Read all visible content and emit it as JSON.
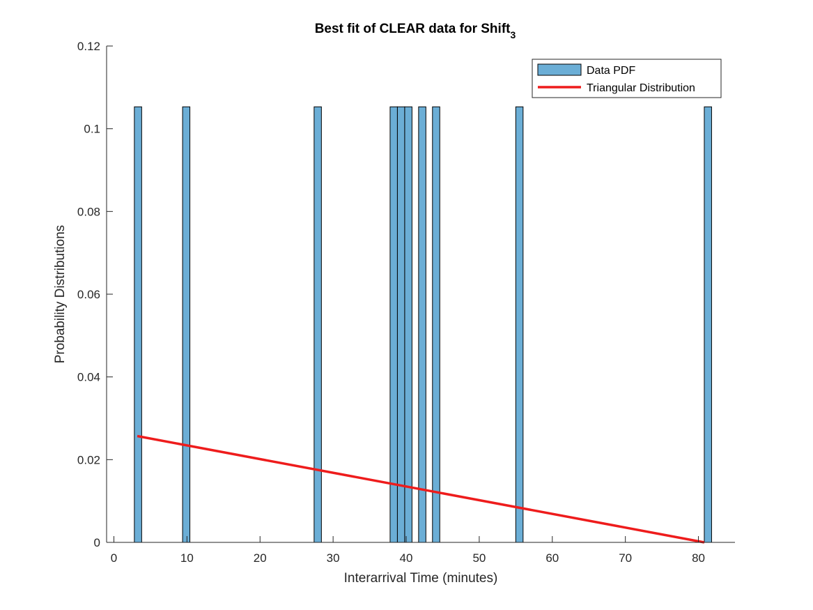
{
  "chart_data": {
    "type": "bar",
    "title": "Best fit of CLEAR data for Shift",
    "title_subscript": "3",
    "xlabel": "Interarrival Time (minutes)",
    "ylabel": "Probability Distributions",
    "xlim": [
      -1,
      85
    ],
    "ylim": [
      0,
      0.12
    ],
    "xticks": [
      0,
      10,
      20,
      30,
      40,
      50,
      60,
      70,
      80
    ],
    "xtick_labels": [
      "0",
      "10",
      "20",
      "30",
      "40",
      "50",
      "60",
      "70",
      "80"
    ],
    "yticks": [
      0,
      0.02,
      0.04,
      0.06,
      0.08,
      0.1,
      0.12
    ],
    "ytick_labels": [
      "0",
      "0.02",
      "0.04",
      "0.06",
      "0.08",
      "0.1",
      "0.12"
    ],
    "grid": false,
    "legend_position": "top-right",
    "bin_width": 1,
    "series": [
      {
        "name": "Data PDF",
        "kind": "bar",
        "color": "#6baed6",
        "edge_color": "#000000",
        "x": [
          3.3,
          9.9,
          27.9,
          38.3,
          39.3,
          40.3,
          42.2,
          44.1,
          55.5,
          81.3
        ],
        "values": [
          0.1053,
          0.1053,
          0.1053,
          0.1053,
          0.1053,
          0.1053,
          0.1053,
          0.1053,
          0.1053,
          0.1053
        ]
      },
      {
        "name": "Triangular Distribution",
        "kind": "line",
        "color": "#ee1c1c",
        "x": [
          3.2,
          80.8
        ],
        "values": [
          0.0257,
          0.0
        ]
      }
    ]
  }
}
